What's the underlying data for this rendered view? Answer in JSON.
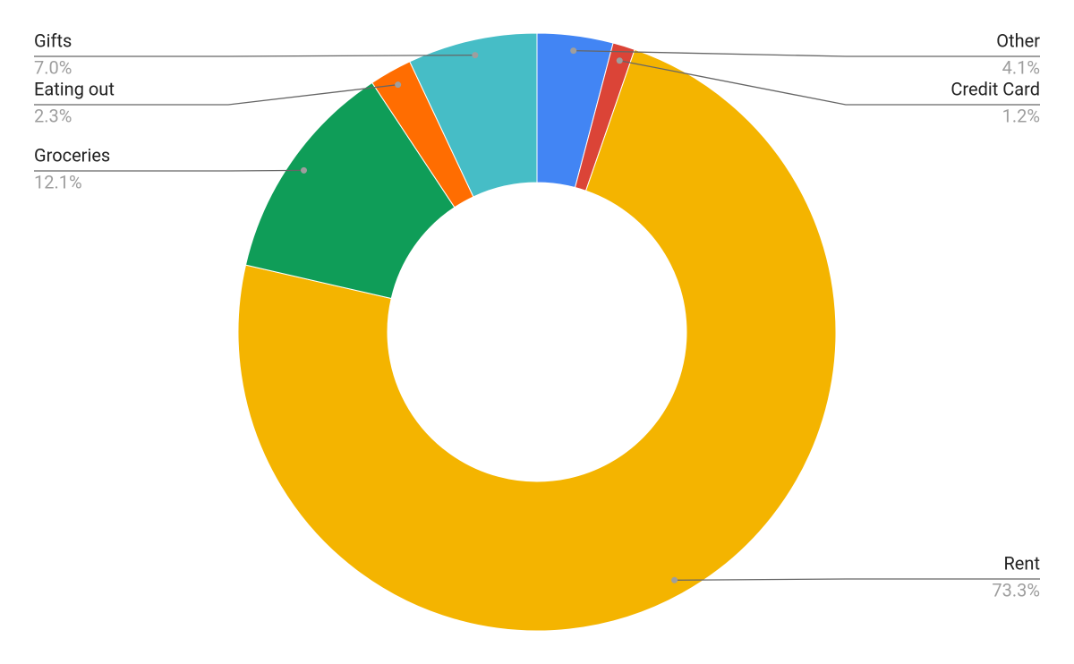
{
  "chart_data": {
    "type": "pie",
    "categories": [
      "Other",
      "Credit Card",
      "Rent",
      "Groceries",
      "Eating out",
      "Gifts"
    ],
    "values": [
      4.1,
      1.2,
      73.3,
      12.1,
      2.3,
      7.0
    ],
    "value_labels": [
      "4.1%",
      "1.2%",
      "73.3%",
      "12.1%",
      "2.3%",
      "7.0%"
    ],
    "colors": [
      "#4285f4",
      "#db4437",
      "#f4b400",
      "#0f9d58",
      "#ff6d01",
      "#46bdc6"
    ],
    "donut": true
  }
}
